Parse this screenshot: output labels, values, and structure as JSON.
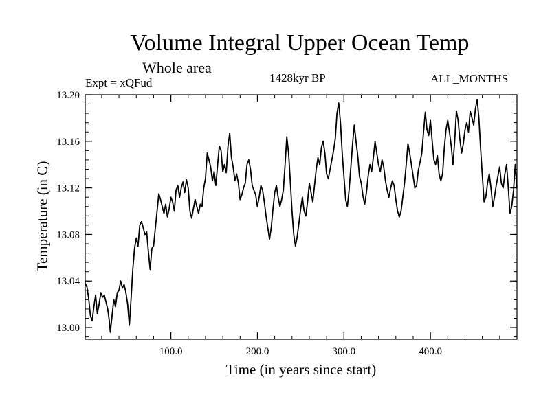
{
  "chart_data": {
    "type": "line",
    "title": "Volume Integral Upper Ocean Temp",
    "subtitle": "Whole area",
    "experiment": "Expt = xQFud",
    "period": "1428kyr BP",
    "months": "ALL_MONTHS",
    "xlabel": "Time (in years since start)",
    "ylabel": "Temperature (in C)",
    "xlim": [
      1,
      500
    ],
    "ylim": [
      12.99,
      13.2
    ],
    "x_ticks": [
      {
        "value": 100,
        "label": "100.0"
      },
      {
        "value": 200,
        "label": "200.0"
      },
      {
        "value": 300,
        "label": "300.0"
      },
      {
        "value": 400,
        "label": "400.0"
      }
    ],
    "y_ticks": [
      {
        "value": 13.0,
        "label": "13.00"
      },
      {
        "value": 13.04,
        "label": "13.04"
      },
      {
        "value": 13.08,
        "label": "13.08"
      },
      {
        "value": 13.12,
        "label": "13.12"
      },
      {
        "value": 13.16,
        "label": "13.16"
      },
      {
        "value": 13.2,
        "label": "13.20"
      }
    ],
    "x_minor_step": 20,
    "y_minor_step": 0.008,
    "series": [
      {
        "name": "Temperature",
        "color": "#000000",
        "points": [
          [
            1,
            13.038
          ],
          [
            3,
            13.035
          ],
          [
            5,
            13.025
          ],
          [
            7,
            13.01
          ],
          [
            9,
            13.006
          ],
          [
            11,
            13.018
          ],
          [
            13,
            13.028
          ],
          [
            15,
            13.012
          ],
          [
            17,
            13.02
          ],
          [
            19,
            13.03
          ],
          [
            21,
            13.026
          ],
          [
            23,
            13.028
          ],
          [
            25,
            13.022
          ],
          [
            27,
            13.016
          ],
          [
            29,
            13.005
          ],
          [
            30,
            12.996
          ],
          [
            32,
            13.01
          ],
          [
            34,
            13.024
          ],
          [
            36,
            13.018
          ],
          [
            38,
            13.03
          ],
          [
            40,
            13.032
          ],
          [
            42,
            13.04
          ],
          [
            44,
            13.034
          ],
          [
            46,
            13.037
          ],
          [
            48,
            13.03
          ],
          [
            50,
            13.02
          ],
          [
            52,
            13.002
          ],
          [
            54,
            13.025
          ],
          [
            56,
            13.05
          ],
          [
            58,
            13.068
          ],
          [
            60,
            13.077
          ],
          [
            62,
            13.07
          ],
          [
            64,
            13.088
          ],
          [
            66,
            13.091
          ],
          [
            68,
            13.086
          ],
          [
            70,
            13.08
          ],
          [
            72,
            13.082
          ],
          [
            74,
            13.065
          ],
          [
            76,
            13.05
          ],
          [
            78,
            13.068
          ],
          [
            80,
            13.07
          ],
          [
            82,
            13.085
          ],
          [
            84,
            13.1
          ],
          [
            86,
            13.115
          ],
          [
            88,
            13.11
          ],
          [
            90,
            13.104
          ],
          [
            92,
            13.098
          ],
          [
            94,
            13.106
          ],
          [
            96,
            13.095
          ],
          [
            98,
            13.102
          ],
          [
            100,
            13.112
          ],
          [
            102,
            13.108
          ],
          [
            104,
            13.1
          ],
          [
            106,
            13.118
          ],
          [
            108,
            13.122
          ],
          [
            110,
            13.112
          ],
          [
            112,
            13.12
          ],
          [
            114,
            13.125
          ],
          [
            116,
            13.116
          ],
          [
            118,
            13.127
          ],
          [
            120,
            13.12
          ],
          [
            122,
            13.1
          ],
          [
            124,
            13.094
          ],
          [
            126,
            13.102
          ],
          [
            128,
            13.11
          ],
          [
            130,
            13.104
          ],
          [
            132,
            13.098
          ],
          [
            134,
            13.106
          ],
          [
            136,
            13.104
          ],
          [
            138,
            13.12
          ],
          [
            140,
            13.128
          ],
          [
            142,
            13.15
          ],
          [
            144,
            13.144
          ],
          [
            146,
            13.138
          ],
          [
            148,
            13.126
          ],
          [
            150,
            13.134
          ],
          [
            152,
            13.122
          ],
          [
            154,
            13.14
          ],
          [
            156,
            13.156
          ],
          [
            158,
            13.152
          ],
          [
            160,
            13.134
          ],
          [
            162,
            13.14
          ],
          [
            164,
            13.133
          ],
          [
            166,
            13.156
          ],
          [
            168,
            13.167
          ],
          [
            170,
            13.146
          ],
          [
            172,
            13.138
          ],
          [
            174,
            13.126
          ],
          [
            176,
            13.132
          ],
          [
            178,
            13.124
          ],
          [
            180,
            13.11
          ],
          [
            182,
            13.114
          ],
          [
            184,
            13.12
          ],
          [
            186,
            13.124
          ],
          [
            188,
            13.14
          ],
          [
            190,
            13.144
          ],
          [
            192,
            13.136
          ],
          [
            194,
            13.122
          ],
          [
            196,
            13.118
          ],
          [
            198,
            13.114
          ],
          [
            200,
            13.104
          ],
          [
            202,
            13.112
          ],
          [
            204,
            13.122
          ],
          [
            206,
            13.118
          ],
          [
            208,
            13.108
          ],
          [
            210,
            13.096
          ],
          [
            212,
            13.086
          ],
          [
            214,
            13.076
          ],
          [
            216,
            13.086
          ],
          [
            218,
            13.102
          ],
          [
            220,
            13.116
          ],
          [
            222,
            13.122
          ],
          [
            224,
            13.112
          ],
          [
            226,
            13.104
          ],
          [
            228,
            13.11
          ],
          [
            230,
            13.118
          ],
          [
            232,
            13.14
          ],
          [
            234,
            13.164
          ],
          [
            236,
            13.15
          ],
          [
            238,
            13.126
          ],
          [
            240,
            13.1
          ],
          [
            242,
            13.08
          ],
          [
            244,
            13.07
          ],
          [
            246,
            13.078
          ],
          [
            248,
            13.09
          ],
          [
            250,
            13.102
          ],
          [
            252,
            13.112
          ],
          [
            254,
            13.1
          ],
          [
            256,
            13.096
          ],
          [
            258,
            13.108
          ],
          [
            260,
            13.124
          ],
          [
            262,
            13.116
          ],
          [
            264,
            13.108
          ],
          [
            266,
            13.122
          ],
          [
            268,
            13.136
          ],
          [
            270,
            13.146
          ],
          [
            272,
            13.14
          ],
          [
            274,
            13.155
          ],
          [
            276,
            13.16
          ],
          [
            278,
            13.15
          ],
          [
            280,
            13.132
          ],
          [
            282,
            13.128
          ],
          [
            284,
            13.136
          ],
          [
            286,
            13.144
          ],
          [
            288,
            13.152
          ],
          [
            290,
            13.162
          ],
          [
            292,
            13.184
          ],
          [
            294,
            13.193
          ],
          [
            296,
            13.176
          ],
          [
            298,
            13.15
          ],
          [
            300,
            13.13
          ],
          [
            302,
            13.11
          ],
          [
            304,
            13.104
          ],
          [
            306,
            13.118
          ],
          [
            308,
            13.138
          ],
          [
            310,
            13.158
          ],
          [
            312,
            13.174
          ],
          [
            314,
            13.16
          ],
          [
            316,
            13.148
          ],
          [
            318,
            13.13
          ],
          [
            320,
            13.124
          ],
          [
            322,
            13.113
          ],
          [
            324,
            13.106
          ],
          [
            326,
            13.116
          ],
          [
            328,
            13.13
          ],
          [
            330,
            13.14
          ],
          [
            332,
            13.134
          ],
          [
            334,
            13.146
          ],
          [
            336,
            13.16
          ],
          [
            338,
            13.15
          ],
          [
            340,
            13.14
          ],
          [
            342,
            13.134
          ],
          [
            344,
            13.144
          ],
          [
            346,
            13.138
          ],
          [
            348,
            13.126
          ],
          [
            350,
            13.118
          ],
          [
            352,
            13.112
          ],
          [
            354,
            13.12
          ],
          [
            356,
            13.126
          ],
          [
            358,
            13.122
          ],
          [
            360,
            13.11
          ],
          [
            362,
            13.1
          ],
          [
            364,
            13.095
          ],
          [
            366,
            13.1
          ],
          [
            368,
            13.112
          ],
          [
            370,
            13.124
          ],
          [
            372,
            13.14
          ],
          [
            374,
            13.158
          ],
          [
            376,
            13.15
          ],
          [
            378,
            13.14
          ],
          [
            380,
            13.13
          ],
          [
            382,
            13.12
          ],
          [
            384,
            13.122
          ],
          [
            386,
            13.135
          ],
          [
            388,
            13.142
          ],
          [
            390,
            13.15
          ],
          [
            392,
            13.168
          ],
          [
            394,
            13.185
          ],
          [
            396,
            13.17
          ],
          [
            398,
            13.165
          ],
          [
            400,
            13.178
          ],
          [
            402,
            13.16
          ],
          [
            404,
            13.144
          ],
          [
            406,
            13.14
          ],
          [
            408,
            13.148
          ],
          [
            410,
            13.132
          ],
          [
            412,
            13.126
          ],
          [
            414,
            13.132
          ],
          [
            416,
            13.154
          ],
          [
            418,
            13.17
          ],
          [
            420,
            13.178
          ],
          [
            422,
            13.168
          ],
          [
            424,
            13.156
          ],
          [
            426,
            13.14
          ],
          [
            428,
            13.16
          ],
          [
            430,
            13.186
          ],
          [
            432,
            13.178
          ],
          [
            434,
            13.162
          ],
          [
            436,
            13.15
          ],
          [
            438,
            13.158
          ],
          [
            440,
            13.17
          ],
          [
            442,
            13.176
          ],
          [
            444,
            13.168
          ],
          [
            446,
            13.186
          ],
          [
            448,
            13.18
          ],
          [
            450,
            13.174
          ],
          [
            452,
            13.188
          ],
          [
            454,
            13.196
          ],
          [
            456,
            13.18
          ],
          [
            458,
            13.154
          ],
          [
            460,
            13.13
          ],
          [
            462,
            13.108
          ],
          [
            464,
            13.112
          ],
          [
            466,
            13.124
          ],
          [
            468,
            13.132
          ],
          [
            470,
            13.12
          ],
          [
            472,
            13.104
          ],
          [
            474,
            13.112
          ],
          [
            476,
            13.122
          ],
          [
            478,
            13.13
          ],
          [
            480,
            13.138
          ],
          [
            482,
            13.124
          ],
          [
            484,
            13.12
          ],
          [
            486,
            13.132
          ],
          [
            488,
            13.14
          ],
          [
            490,
            13.12
          ],
          [
            492,
            13.098
          ],
          [
            494,
            13.104
          ],
          [
            496,
            13.118
          ],
          [
            498,
            13.14
          ],
          [
            500,
            13.12
          ]
        ]
      }
    ]
  }
}
